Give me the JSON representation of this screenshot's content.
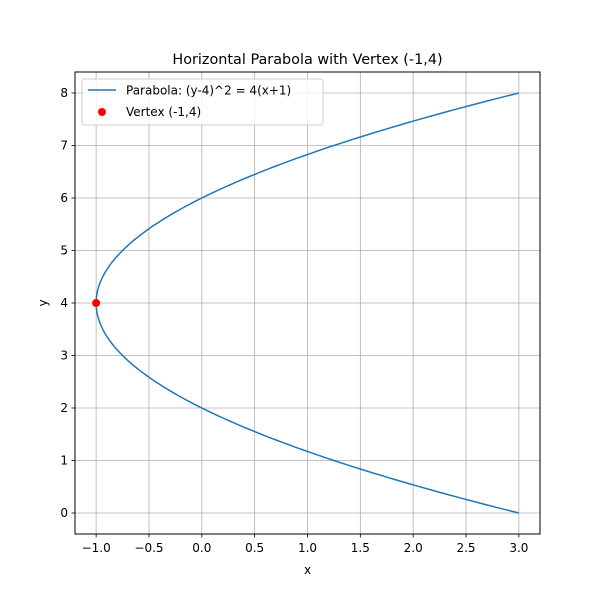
{
  "chart_data": {
    "type": "line",
    "title": "Horizontal Parabola with Vertex (-1,4)",
    "xlabel": "x",
    "ylabel": "y",
    "xlim": [
      -1.2,
      3.2
    ],
    "ylim": [
      -0.4,
      8.4
    ],
    "xticks": [
      -1.0,
      -0.5,
      0.0,
      0.5,
      1.0,
      1.5,
      2.0,
      2.5,
      3.0
    ],
    "xtick_labels": [
      "−1.0",
      "−0.5",
      "0.0",
      "0.5",
      "1.0",
      "1.5",
      "2.0",
      "2.5",
      "3.0"
    ],
    "yticks": [
      0,
      1,
      2,
      3,
      4,
      5,
      6,
      7,
      8
    ],
    "ytick_labels": [
      "0",
      "1",
      "2",
      "3",
      "4",
      "5",
      "6",
      "7",
      "8"
    ],
    "grid": true,
    "legend_position": "top-left",
    "series": [
      {
        "name": "Parabola: (y-4)^2 = 4(x+1)",
        "kind": "line",
        "color": "#1f77b4",
        "equation": "(y-4)^2 = 4(x+1)",
        "y_range": [
          0,
          8
        ]
      },
      {
        "name": "Vertex (-1,4)",
        "kind": "scatter",
        "color": "#ff0000",
        "points": [
          {
            "x": -1,
            "y": 4
          }
        ]
      }
    ]
  }
}
